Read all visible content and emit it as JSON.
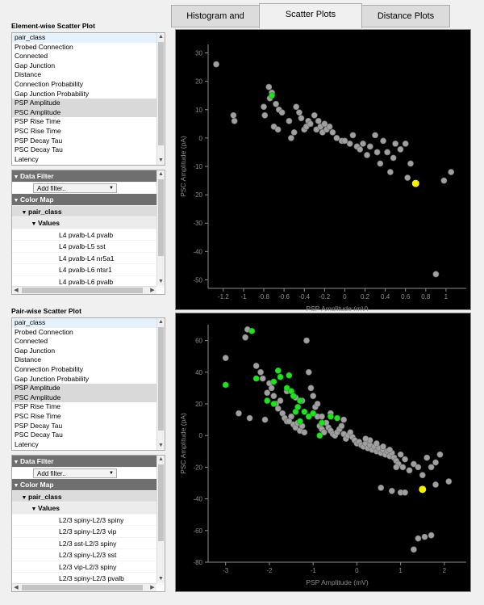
{
  "tabs": [
    "Histogram and TSeries",
    "Scatter Plots",
    "Distance Plots"
  ],
  "active_tab": 1,
  "element_section": {
    "title": "Element-wise Scatter Plot",
    "fields": [
      "pair_class",
      "Probed Connection",
      "Connected",
      "Gap Junction",
      "Distance",
      "Connection Probability",
      "Gap Junction Probability",
      "PSP Amplitude",
      "PSC Amplitude",
      "PSP Rise Time",
      "PSC Rise Time",
      "PSP Decay Tau",
      "PSC Decay Tau",
      "Latency"
    ],
    "selected": [
      "PSP Amplitude",
      "PSC Amplitude"
    ],
    "tree": {
      "data_filter": "Data Filter",
      "add_filter": "Add filter..",
      "color_map": "Color Map",
      "group": "pair_class",
      "values_label": "Values",
      "values": [
        "L4 pvalb-L4 pvalb",
        "L4 pvalb-L5 sst",
        "L4 pvalb-L4 nr5a1",
        "L4 pvalb-L6 ntsr1",
        "L4 pvalb-L6 pvalb",
        "L4 pvalb-L4 vip"
      ]
    }
  },
  "pair_section": {
    "title": "Pair-wise Scatter Plot",
    "fields": [
      "pair_class",
      "Probed Connection",
      "Connected",
      "Gap Junction",
      "Distance",
      "Connection Probability",
      "Gap Junction Probability",
      "PSP Amplitude",
      "PSC Amplitude",
      "PSP Rise Time",
      "PSC Rise Time",
      "PSP Decay Tau",
      "PSC Decay Tau",
      "Latency"
    ],
    "selected": [
      "PSP Amplitude",
      "PSC Amplitude"
    ],
    "tree": {
      "data_filter": "Data Filter",
      "add_filter": "Add filter..",
      "color_map": "Color Map",
      "group": "pair_class",
      "values_label": "Values",
      "values": [
        "L2/3 spiny-L2/3 spiny",
        "L2/3 spiny-L2/3 vip",
        "L2/3 sst-L2/3 spiny",
        "L2/3 spiny-L2/3 sst",
        "L2/3 vip-L2/3 spiny",
        "L2/3 spiny-L2/3 pvalb"
      ]
    }
  },
  "colors": {
    "point": "#a0a0a0",
    "highlight": "#22e022",
    "selected": "#f5f000",
    "plot_bg": "#000000",
    "axis": "#8c8c8c"
  },
  "chart_data": [
    {
      "type": "scatter",
      "xlabel": "PSP Amplitude (mV)",
      "ylabel": "PSC Amplitude (pA)",
      "xlim": [
        -1.35,
        1.2
      ],
      "ylim": [
        -53,
        33
      ],
      "xticks": [
        -1.2,
        -1,
        -0.8,
        -0.6,
        -0.4,
        -0.2,
        0,
        0.2,
        0.4,
        0.6,
        0.8,
        1
      ],
      "yticks": [
        -50,
        -40,
        -30,
        -20,
        -10,
        0,
        10,
        20,
        30
      ],
      "points": [
        [
          -1.27,
          26
        ],
        [
          -1.1,
          8
        ],
        [
          -1.09,
          6
        ],
        [
          -0.8,
          11
        ],
        [
          -0.79,
          8
        ],
        [
          -0.75,
          18
        ],
        [
          -0.72,
          16
        ],
        [
          -0.74,
          14
        ],
        [
          -0.68,
          12
        ],
        [
          -0.65,
          10
        ],
        [
          -0.62,
          9
        ],
        [
          -0.7,
          4
        ],
        [
          -0.66,
          3
        ],
        [
          -0.55,
          6
        ],
        [
          -0.53,
          0
        ],
        [
          -0.5,
          2
        ],
        [
          -0.48,
          11
        ],
        [
          -0.45,
          9
        ],
        [
          -0.43,
          7
        ],
        [
          -0.4,
          3
        ],
        [
          -0.38,
          4
        ],
        [
          -0.36,
          6
        ],
        [
          -0.34,
          5
        ],
        [
          -0.3,
          8
        ],
        [
          -0.28,
          3
        ],
        [
          -0.26,
          6
        ],
        [
          -0.24,
          4
        ],
        [
          -0.22,
          2
        ],
        [
          -0.2,
          5
        ],
        [
          -0.18,
          3
        ],
        [
          -0.15,
          4
        ],
        [
          -0.12,
          2
        ],
        [
          -0.08,
          0
        ],
        [
          -0.03,
          -1
        ],
        [
          0.0,
          -1
        ],
        [
          0.05,
          -2
        ],
        [
          0.08,
          1
        ],
        [
          0.12,
          -3
        ],
        [
          0.15,
          -4
        ],
        [
          0.18,
          -2
        ],
        [
          0.22,
          -6
        ],
        [
          0.25,
          -3
        ],
        [
          0.3,
          1
        ],
        [
          0.32,
          -5
        ],
        [
          0.35,
          -9
        ],
        [
          0.38,
          -1
        ],
        [
          0.42,
          -5
        ],
        [
          0.45,
          -12
        ],
        [
          0.48,
          -7
        ],
        [
          0.5,
          -2
        ],
        [
          0.55,
          -4
        ],
        [
          0.6,
          -2
        ],
        [
          0.62,
          -14
        ],
        [
          0.65,
          -9
        ],
        [
          0.9,
          -48
        ],
        [
          0.98,
          -15
        ],
        [
          1.05,
          -12
        ]
      ],
      "highlighted": [
        [
          -0.72,
          15
        ]
      ],
      "selected_point": [
        0.7,
        -16
      ]
    },
    {
      "type": "scatter",
      "xlabel": "PSP Amplitude (mV)",
      "ylabel": "PSC Amplitude (pA)",
      "xlim": [
        -3.4,
        2.5
      ],
      "ylim": [
        -80,
        70
      ],
      "xticks": [
        -3,
        -2,
        -1,
        0,
        1,
        2
      ],
      "yticks": [
        -80,
        -60,
        -40,
        -20,
        0,
        20,
        40,
        60
      ],
      "points": [
        [
          -3.0,
          49
        ],
        [
          -2.7,
          14
        ],
        [
          -2.5,
          67
        ],
        [
          -2.45,
          11
        ],
        [
          -2.3,
          44
        ],
        [
          -2.2,
          40
        ],
        [
          -2.15,
          36
        ],
        [
          -2.0,
          33
        ],
        [
          -1.95,
          30
        ],
        [
          -1.9,
          25
        ],
        [
          -1.85,
          20
        ],
        [
          -1.8,
          17
        ],
        [
          -1.75,
          22
        ],
        [
          -1.7,
          14
        ],
        [
          -1.65,
          11
        ],
        [
          -1.6,
          9
        ],
        [
          -1.5,
          12
        ],
        [
          -1.45,
          7
        ],
        [
          -1.4,
          5
        ],
        [
          -1.35,
          8
        ],
        [
          -1.3,
          3
        ],
        [
          -1.25,
          6
        ],
        [
          -1.2,
          2
        ],
        [
          -1.15,
          60
        ],
        [
          -1.1,
          40
        ],
        [
          -1.05,
          30
        ],
        [
          -1.0,
          25
        ],
        [
          -0.95,
          18
        ],
        [
          -0.9,
          12
        ],
        [
          -0.85,
          6
        ],
        [
          -0.8,
          4
        ],
        [
          -0.75,
          2
        ],
        [
          -0.7,
          8
        ],
        [
          -0.65,
          5
        ],
        [
          -0.6,
          3
        ],
        [
          -0.55,
          1
        ],
        [
          -0.5,
          0
        ],
        [
          -0.45,
          2
        ],
        [
          -0.4,
          4
        ],
        [
          -0.35,
          6
        ],
        [
          -0.3,
          1
        ],
        [
          -0.25,
          -2
        ],
        [
          -0.2,
          0
        ],
        [
          -0.15,
          2
        ],
        [
          -0.1,
          -1
        ],
        [
          -0.05,
          -3
        ],
        [
          0.0,
          -5
        ],
        [
          0.05,
          -4
        ],
        [
          0.1,
          -6
        ],
        [
          0.15,
          -7
        ],
        [
          0.2,
          -5
        ],
        [
          0.25,
          -8
        ],
        [
          0.3,
          -6
        ],
        [
          0.35,
          -9
        ],
        [
          0.4,
          -7
        ],
        [
          0.45,
          -10
        ],
        [
          0.5,
          -8
        ],
        [
          0.55,
          -11
        ],
        [
          0.6,
          -9
        ],
        [
          0.65,
          -12
        ],
        [
          0.7,
          -10
        ],
        [
          0.75,
          -13
        ],
        [
          0.8,
          -11
        ],
        [
          0.85,
          -14
        ],
        [
          0.9,
          -16
        ],
        [
          0.95,
          -18
        ],
        [
          1.0,
          -12
        ],
        [
          1.05,
          -20
        ],
        [
          1.1,
          -15
        ],
        [
          1.2,
          -22
        ],
        [
          1.3,
          -18
        ],
        [
          1.4,
          -20
        ],
        [
          1.5,
          -25
        ],
        [
          1.6,
          -14
        ],
        [
          1.7,
          -20
        ],
        [
          1.8,
          -17
        ],
        [
          1.9,
          -12
        ],
        [
          2.1,
          -29
        ],
        [
          1.8,
          -31
        ],
        [
          0.55,
          -33
        ],
        [
          0.8,
          -35
        ],
        [
          0.9,
          -20
        ],
        [
          1.0,
          -36
        ],
        [
          1.1,
          -36
        ],
        [
          -0.8,
          12
        ],
        [
          -1.55,
          9
        ],
        [
          -2.1,
          10
        ],
        [
          -2.55,
          62
        ],
        [
          -2.05,
          27
        ],
        [
          -1.25,
          22
        ],
        [
          1.3,
          -72
        ],
        [
          1.4,
          -65
        ],
        [
          1.55,
          -64
        ],
        [
          1.7,
          -63
        ],
        [
          0.3,
          -3
        ],
        [
          0.45,
          -5
        ],
        [
          0.6,
          -7
        ],
        [
          0.75,
          -9
        ],
        [
          0.2,
          -2
        ],
        [
          -0.3,
          10
        ],
        [
          -0.6,
          14
        ],
        [
          -0.9,
          20
        ],
        [
          -1.6,
          28
        ],
        [
          -1.4,
          24
        ]
      ],
      "highlighted": [
        [
          -3.0,
          32
        ],
        [
          -2.4,
          66
        ],
        [
          -2.3,
          36
        ],
        [
          -1.9,
          34
        ],
        [
          -1.8,
          41
        ],
        [
          -1.75,
          37
        ],
        [
          -1.6,
          30
        ],
        [
          -1.55,
          38
        ],
        [
          -1.9,
          20
        ],
        [
          -1.5,
          28
        ],
        [
          -1.45,
          25
        ],
        [
          -1.3,
          22
        ],
        [
          -1.2,
          15
        ],
        [
          -1.1,
          12
        ],
        [
          -0.8,
          8
        ],
        [
          -1.4,
          15
        ],
        [
          -1.3,
          9
        ],
        [
          -0.6,
          12
        ],
        [
          -0.45,
          11
        ],
        [
          -1.35,
          18
        ],
        [
          -2.05,
          22
        ],
        [
          -0.85,
          0
        ],
        [
          -1.0,
          14
        ]
      ],
      "selected_point": [
        1.5,
        -34
      ]
    }
  ]
}
